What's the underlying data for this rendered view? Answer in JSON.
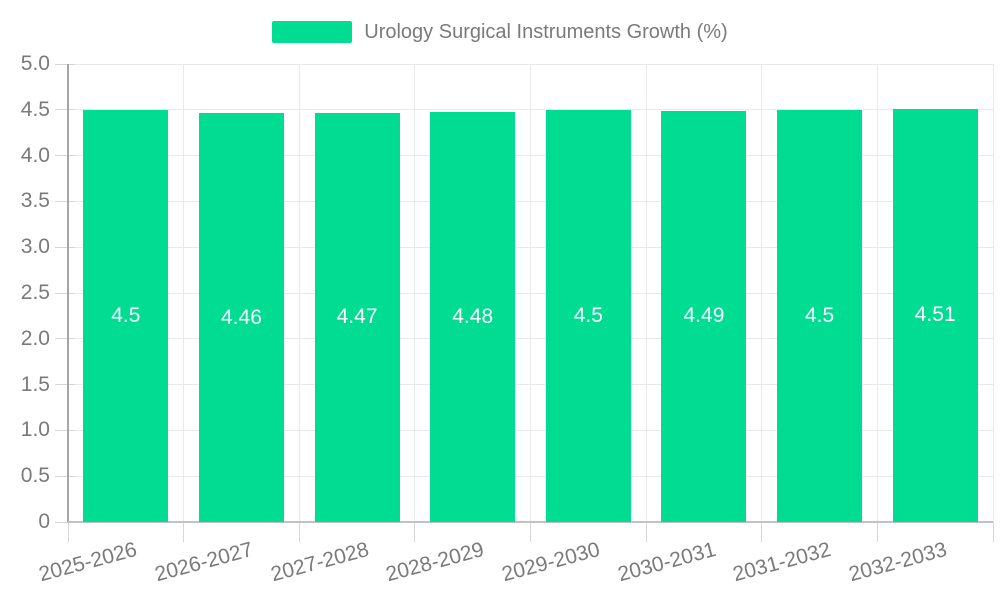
{
  "legend": {
    "label": "Urology Surgical Instruments Growth (%)"
  },
  "colors": {
    "bar": "#00DC92",
    "bar_label": "#ffffff",
    "grid": "#e9e9e9",
    "tick": "#d6d6d6",
    "axis": "#a6a6a6",
    "baseline": "#c2c2c2",
    "text": "#7a7a7a",
    "background": "#ffffff"
  },
  "chart_data": {
    "type": "bar",
    "title": "Urology Surgical Instruments Growth (%)",
    "legend_entries": [
      "Urology Surgical Instruments Growth (%)"
    ],
    "legend_position": "top",
    "xlabel": "",
    "ylabel": "",
    "categories": [
      "2025-2026",
      "2026-2027",
      "2027-2028",
      "2028-2029",
      "2029-2030",
      "2030-2031",
      "2031-2032",
      "2032-2033"
    ],
    "values": [
      4.5,
      4.46,
      4.47,
      4.48,
      4.5,
      4.49,
      4.5,
      4.51
    ],
    "bar_labels": [
      "4.5",
      "4.46",
      "4.47",
      "4.48",
      "4.5",
      "4.49",
      "4.5",
      "4.51"
    ],
    "ylim": [
      0,
      5
    ],
    "ytick_step": 0.5,
    "ytick_labels": [
      "0",
      "0.5",
      "1.0",
      "1.5",
      "2.0",
      "2.5",
      "3.0",
      "3.5",
      "4.0",
      "4.5",
      "5.0"
    ],
    "grid": true
  }
}
